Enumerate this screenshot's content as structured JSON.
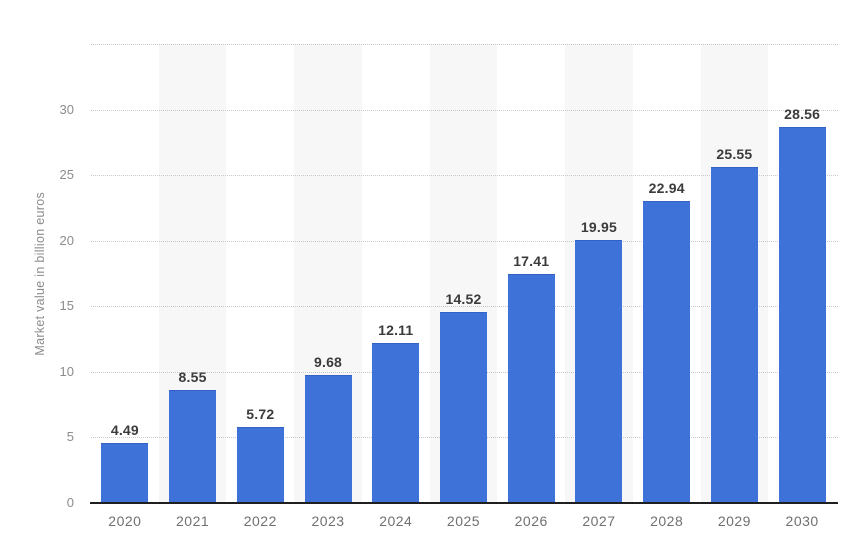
{
  "chart_data": {
    "type": "bar",
    "title": "",
    "categories": [
      "2020",
      "2021",
      "2022",
      "2023",
      "2024",
      "2025",
      "2026",
      "2027",
      "2028",
      "2029",
      "2030"
    ],
    "values": [
      4.49,
      8.55,
      5.72,
      9.68,
      12.11,
      14.52,
      17.41,
      19.95,
      22.94,
      25.55,
      28.56
    ],
    "data_labels": [
      "4.49",
      "8.55",
      "5.72",
      "9.68",
      "12.11",
      "14.52",
      "17.41",
      "19.95",
      "22.94",
      "25.55",
      "28.56"
    ],
    "xlabel": "",
    "ylabel": "Market value in billion euros",
    "ylim": [
      0,
      35
    ],
    "yticks": [
      0,
      5,
      10,
      15,
      20,
      25,
      30
    ],
    "gridline_values": [
      5,
      10,
      15,
      20,
      25,
      30,
      35
    ],
    "grid": "horizontal-dotted",
    "legend": "none",
    "plot_bands": "alternating vertical stripes behind odd categories"
  },
  "colors": {
    "bar": "#3E72D8",
    "bar_top_edge": "#3263C4",
    "stripe": "#F7F7F7",
    "gridline": "#C9C9C9",
    "axis_line": "#1F1F1F",
    "value_label": "#3B3B3B",
    "x_tick_label": "#707070",
    "y_tick_label": "#8C8C8C",
    "y_axis_title": "#8C8C8C",
    "background": "#FFFFFF"
  }
}
